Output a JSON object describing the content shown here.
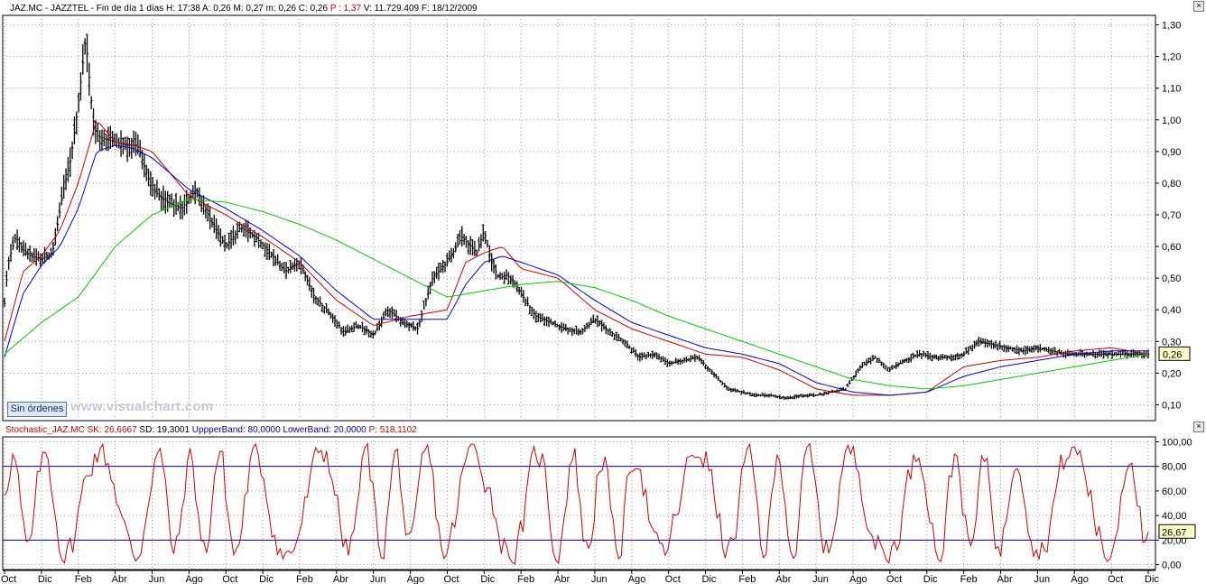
{
  "header": {
    "symbol_label": "JAZ.MC - JAZZTEL - Fin de día 1 días",
    "fields": [
      {
        "label": "H:",
        "value": "17:38",
        "color": "#000000"
      },
      {
        "label": "A:",
        "value": "0,26",
        "color": "#000000"
      },
      {
        "label": "M:",
        "value": "0,27",
        "color": "#000000"
      },
      {
        "label": "m:",
        "value": "0,26",
        "color": "#000000"
      },
      {
        "label": "C:",
        "value": "0,26",
        "color": "#000000"
      },
      {
        "label": "P :",
        "value": "1,37",
        "color": "#cc0000"
      },
      {
        "label": "V:",
        "value": "11.729.409",
        "color": "#000000"
      },
      {
        "label": "F:",
        "value": "18/12/2009",
        "color": "#000000"
      }
    ]
  },
  "stoch_header": {
    "items": [
      {
        "text": "Stochastic_JAZ.MC",
        "color": "#cc0000"
      },
      {
        "text": "SK: 26,6667",
        "color": "#cc0000"
      },
      {
        "text": "SD: 19,3001",
        "color": "#000000"
      },
      {
        "text": "UppperBand: 80,0000",
        "color": "#0000aa"
      },
      {
        "text": "LowerBand: 20,0000",
        "color": "#0000aa"
      },
      {
        "text": "P: 518,1102",
        "color": "#cc0000"
      }
    ]
  },
  "button_label": "Sin órdenes",
  "watermark": "www.visualchart.com",
  "colors": {
    "price": "#000000",
    "ma_short": "#cc0000",
    "ma_mid": "#0000cc",
    "ma_long": "#00cc00",
    "stoch": "#cc0000",
    "bands": "#0000aa"
  },
  "chart_data": [
    {
      "type": "line",
      "subtype": "ohlc-bars",
      "title": "",
      "y_ticks": [
        "1,30",
        "1,20",
        "1,10",
        "1,00",
        "0,90",
        "0,80",
        "0,70",
        "0,60",
        "0,50",
        "0,40",
        "0,30",
        "0,20",
        "0,10"
      ],
      "ylim": [
        0.05,
        1.33
      ],
      "last_value_label": "0,26",
      "last_value": 0.26,
      "grid": true,
      "x_labels": [
        "Oct",
        "Dic",
        "Feb",
        "Abr",
        "Jun",
        "Ago",
        "Oct",
        "Dic",
        "Feb",
        "Abr",
        "Jun",
        "Ago",
        "Oct",
        "Dic",
        "Feb",
        "Abr",
        "Jun",
        "Ago",
        "Oct",
        "Dic",
        "Feb",
        "Abr",
        "Jun",
        "Ago",
        "Oct",
        "Dic",
        "Feb",
        "Abr",
        "Jun",
        "Ago",
        "Oct",
        "Dic"
      ],
      "x_index": [
        0,
        1,
        2,
        3,
        4,
        5,
        6,
        7,
        8,
        9,
        10,
        11,
        12,
        13,
        14,
        15,
        16,
        17,
        18,
        19,
        20,
        21,
        22,
        23,
        24,
        25,
        26,
        27,
        28,
        29,
        30,
        31
      ],
      "series": [
        {
          "name": "",
          "kind": "price",
          "x": [
            0,
            0.1,
            0.3,
            0.5,
            0.7,
            1.0,
            1.3,
            1.6,
            1.8,
            2.0,
            2.2,
            2.4,
            2.5,
            2.7,
            3.0,
            3.3,
            3.6,
            4.0,
            4.4,
            4.8,
            5.2,
            5.6,
            6.0,
            6.4,
            6.8,
            7.2,
            7.6,
            8.0,
            8.4,
            8.8,
            9.2,
            9.6,
            10.0,
            10.4,
            10.8,
            11.2,
            11.6,
            12.0,
            12.4,
            12.8,
            13.0,
            13.2,
            13.4,
            13.6,
            13.8,
            14.0,
            14.4,
            14.8,
            15.2,
            15.6,
            16.0,
            16.4,
            16.8,
            17.2,
            17.6,
            18.0,
            18.4,
            18.8,
            19.2,
            19.6,
            20.0,
            20.4,
            20.8,
            21.2,
            21.6,
            22.0,
            22.4,
            22.8,
            23.2,
            23.6,
            24.0,
            24.4,
            24.8,
            25.2,
            25.6,
            26.0,
            26.4,
            26.8,
            27.2,
            27.6,
            28.0,
            28.4,
            28.8,
            29.2,
            29.6,
            30.0,
            30.4,
            30.8,
            31.0
          ],
          "values": [
            0.42,
            0.55,
            0.63,
            0.59,
            0.57,
            0.56,
            0.58,
            0.78,
            0.88,
            1.05,
            1.26,
            1.0,
            0.95,
            0.94,
            0.93,
            0.92,
            0.92,
            0.78,
            0.74,
            0.72,
            0.78,
            0.68,
            0.6,
            0.66,
            0.63,
            0.58,
            0.52,
            0.55,
            0.44,
            0.39,
            0.33,
            0.35,
            0.32,
            0.4,
            0.36,
            0.34,
            0.5,
            0.55,
            0.63,
            0.58,
            0.65,
            0.55,
            0.5,
            0.51,
            0.49,
            0.45,
            0.38,
            0.36,
            0.34,
            0.33,
            0.37,
            0.33,
            0.3,
            0.25,
            0.26,
            0.23,
            0.24,
            0.25,
            0.2,
            0.15,
            0.14,
            0.13,
            0.13,
            0.12,
            0.13,
            0.13,
            0.14,
            0.15,
            0.22,
            0.25,
            0.21,
            0.24,
            0.26,
            0.25,
            0.25,
            0.26,
            0.3,
            0.29,
            0.28,
            0.27,
            0.28,
            0.27,
            0.26,
            0.26,
            0.26,
            0.26,
            0.26,
            0.26,
            0.26
          ]
        },
        {
          "name": "",
          "kind": "ma_short",
          "x": [
            0,
            0.5,
            1.0,
            1.5,
            2.0,
            2.5,
            3.0,
            3.5,
            4.0,
            5.0,
            6.0,
            7.0,
            8.0,
            9.0,
            10.0,
            11.0,
            12.0,
            12.5,
            13.0,
            13.5,
            14.0,
            15.0,
            16.0,
            17.0,
            18.0,
            19.0,
            20.0,
            21.0,
            22.0,
            23.0,
            24.0,
            25.0,
            26.0,
            27.0,
            28.0,
            29.0,
            30.0,
            31.0
          ],
          "values": [
            0.3,
            0.52,
            0.57,
            0.65,
            0.8,
            1.0,
            0.93,
            0.92,
            0.9,
            0.76,
            0.7,
            0.63,
            0.55,
            0.43,
            0.35,
            0.38,
            0.4,
            0.55,
            0.58,
            0.6,
            0.53,
            0.5,
            0.4,
            0.34,
            0.3,
            0.26,
            0.25,
            0.21,
            0.15,
            0.13,
            0.13,
            0.14,
            0.22,
            0.24,
            0.25,
            0.27,
            0.28,
            0.26
          ]
        },
        {
          "name": "",
          "kind": "ma_mid",
          "x": [
            0,
            0.5,
            1.0,
            1.5,
            2.0,
            2.5,
            3.0,
            3.5,
            4.0,
            5.0,
            6.0,
            7.0,
            8.0,
            9.0,
            10.0,
            11.0,
            12.0,
            12.5,
            13.0,
            13.5,
            14.0,
            15.0,
            16.0,
            17.0,
            18.0,
            19.0,
            20.0,
            21.0,
            22.0,
            23.0,
            24.0,
            25.0,
            26.0,
            27.0,
            28.0,
            29.0,
            30.0,
            31.0
          ],
          "values": [
            0.25,
            0.45,
            0.54,
            0.6,
            0.72,
            0.9,
            0.92,
            0.91,
            0.88,
            0.78,
            0.72,
            0.65,
            0.57,
            0.46,
            0.37,
            0.37,
            0.37,
            0.48,
            0.55,
            0.57,
            0.55,
            0.51,
            0.43,
            0.36,
            0.32,
            0.28,
            0.26,
            0.23,
            0.17,
            0.14,
            0.13,
            0.14,
            0.19,
            0.22,
            0.24,
            0.26,
            0.27,
            0.27
          ]
        },
        {
          "name": "",
          "kind": "ma_long",
          "x": [
            0,
            1.0,
            2.0,
            3.0,
            4.0,
            5.0,
            6.0,
            7.0,
            8.0,
            9.0,
            10.0,
            11.0,
            12.0,
            13.0,
            14.0,
            15.0,
            16.0,
            17.0,
            18.0,
            19.0,
            20.0,
            21.0,
            22.0,
            23.0,
            24.0,
            25.0,
            26.0,
            27.0,
            28.0,
            29.0,
            30.0,
            31.0
          ],
          "values": [
            0.26,
            0.36,
            0.44,
            0.6,
            0.7,
            0.75,
            0.74,
            0.71,
            0.67,
            0.62,
            0.56,
            0.5,
            0.44,
            0.46,
            0.48,
            0.49,
            0.47,
            0.43,
            0.38,
            0.34,
            0.3,
            0.26,
            0.22,
            0.18,
            0.16,
            0.15,
            0.16,
            0.18,
            0.2,
            0.22,
            0.24,
            0.26
          ]
        }
      ]
    },
    {
      "type": "line",
      "title": "",
      "y_ticks": [
        "100,00",
        "80,00",
        "60,00",
        "40,00",
        "20,00",
        "0,00"
      ],
      "ylim": [
        -4,
        104
      ],
      "upper_band": 80,
      "lower_band": 20,
      "last_value_label": "26,67",
      "last_value": 26.67,
      "grid": true,
      "series": [
        {
          "name": "",
          "kind": "stoch_osc",
          "points": 420,
          "pattern": "oscillating 0-100"
        }
      ]
    }
  ]
}
